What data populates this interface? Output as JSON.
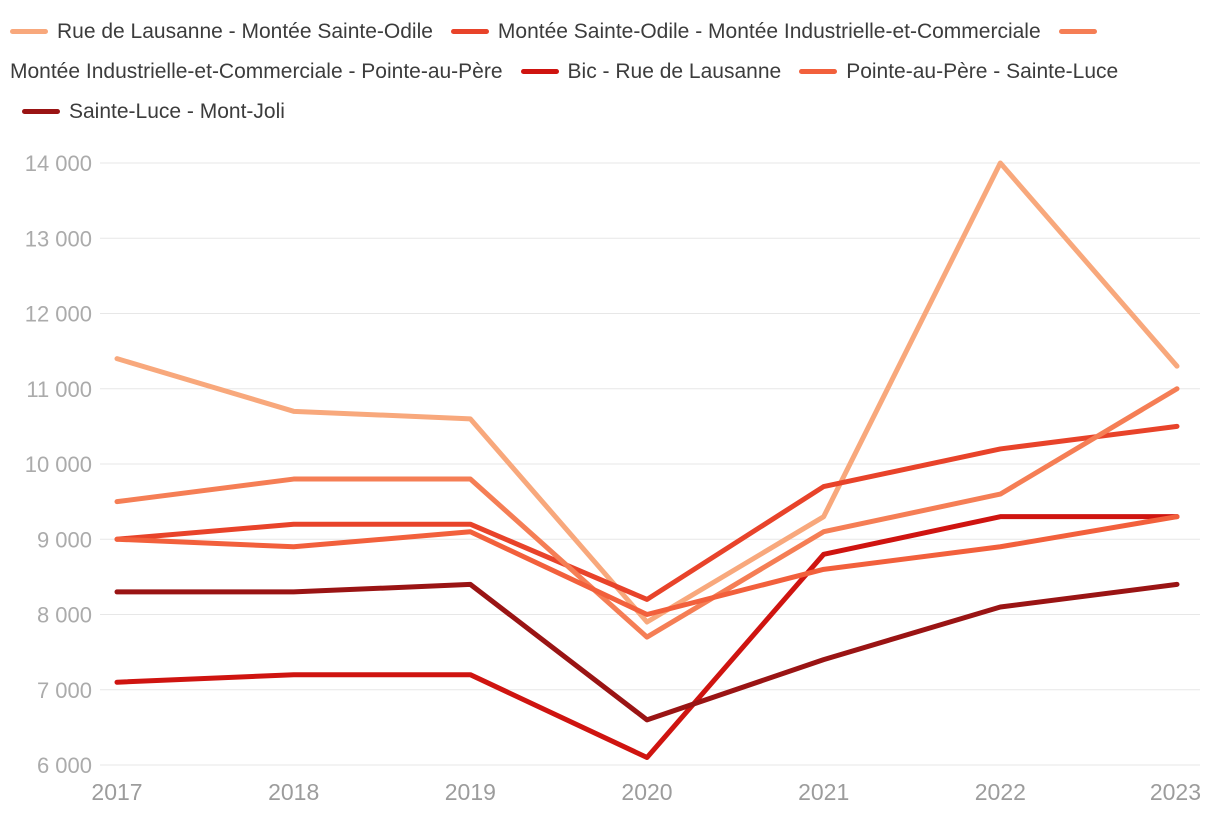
{
  "chart_data": {
    "type": "line",
    "title": "",
    "x": [
      2017,
      2018,
      2019,
      2020,
      2021,
      2022,
      2023
    ],
    "xtick_labels": [
      "2017",
      "2018",
      "2019",
      "2020",
      "2021",
      "2022",
      "2023"
    ],
    "ylim": [
      6000,
      14000
    ],
    "ytick_step": 1000,
    "ytick_values": [
      6000,
      7000,
      8000,
      9000,
      10000,
      11000,
      12000,
      13000,
      14000
    ],
    "ytick_labels": [
      "6 000",
      "7 000",
      "8 000",
      "9 000",
      "10 000",
      "11 000",
      "12 000",
      "13 000",
      "14 000"
    ],
    "grid": "horizontal",
    "legend_position": "top",
    "series": [
      {
        "name": "Rue de Lausanne - Montée Sainte-Odile",
        "color": "#F8A87C",
        "values": [
          11400,
          10700,
          10600,
          7900,
          9300,
          14000,
          11300
        ]
      },
      {
        "name": "Montée Sainte-Odile - Montée Industrielle-et-Commerciale",
        "color": "#E8432A",
        "values": [
          9000,
          9200,
          9200,
          8200,
          9700,
          10200,
          10500
        ]
      },
      {
        "name": "Montée Industrielle-et-Commerciale - Pointe-au-Père",
        "color": "#F57E55",
        "values": [
          9500,
          9800,
          9800,
          7700,
          9100,
          9600,
          11000
        ]
      },
      {
        "name": "Bic - Rue de Lausanne",
        "color": "#CF1410",
        "values": [
          7100,
          7200,
          7200,
          6100,
          8800,
          9300,
          9300
        ]
      },
      {
        "name": "Pointe-au-Père - Sainte-Luce",
        "color": "#F2603C",
        "values": [
          9000,
          8900,
          9100,
          8000,
          8600,
          8900,
          9300
        ]
      },
      {
        "name": "Sainte-Luce - Mont-Joli",
        "color": "#9A1414",
        "values": [
          8300,
          8300,
          8400,
          6600,
          7400,
          8100,
          8400
        ]
      }
    ]
  },
  "theme": {
    "background": "#ffffff",
    "legend_text_color": "#3c3c3c",
    "ytick_color": "#ababab",
    "xtick_color": "#9c9c9c",
    "grid_color": "#e7e7e7"
  }
}
